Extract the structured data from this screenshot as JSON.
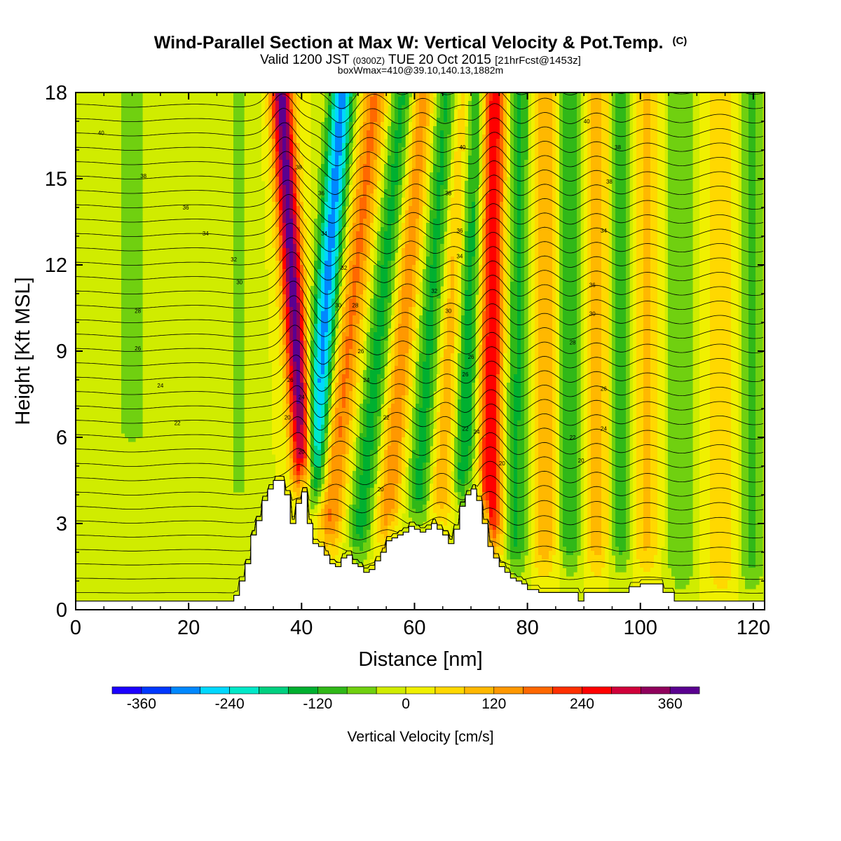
{
  "header": {
    "title": "Wind-Parallel Section at Max W: Vertical Velocity & Pot.Temp.",
    "title_mark": "(C)",
    "valid_prefix": "Valid 1200 JST",
    "valid_zulu": "(0300Z)",
    "valid_date": "TUE 20 Oct 2015",
    "valid_fcst": "[21hrFcst@1453z]",
    "box_info": "boxWmax=410@39.10,140.13,1882m"
  },
  "chart_data": {
    "type": "heatmap",
    "xlabel": "Distance [nm]",
    "ylabel": "Height [Kft MSL]",
    "xlim": [
      0,
      122
    ],
    "ylim": [
      0,
      18
    ],
    "xticks": [
      0,
      20,
      40,
      60,
      80,
      100,
      120
    ],
    "yticks": [
      0,
      3,
      6,
      9,
      12,
      15,
      18
    ],
    "grid": false,
    "colorbar": {
      "label": "Vertical Velocity [cm/s]",
      "placement": "bottom",
      "tick_values": [
        -360,
        -240,
        -120,
        0,
        120,
        240,
        360
      ],
      "level_edges": [
        -400,
        -360,
        -320,
        -280,
        -240,
        -200,
        -160,
        -120,
        -80,
        -40,
        0,
        40,
        80,
        120,
        160,
        200,
        240,
        280,
        320,
        360,
        400,
        440
      ],
      "colors": [
        "#1c00ff",
        "#0038ff",
        "#0088ff",
        "#00d8ff",
        "#00e8c8",
        "#00d080",
        "#00b030",
        "#30b818",
        "#70d010",
        "#d0ec00",
        "#f0f000",
        "#ffd800",
        "#ffb800",
        "#ff9800",
        "#ff6800",
        "#ff3000",
        "#ff0000",
        "#d0003a",
        "#90005c",
        "#5a0090"
      ]
    },
    "terrain_kft": {
      "x": [
        0,
        26,
        28,
        29,
        30,
        31,
        32,
        33,
        34,
        35,
        36,
        37,
        38,
        39,
        40,
        41,
        42,
        43,
        44,
        45,
        46,
        47,
        48,
        49,
        50,
        51,
        52,
        53,
        54,
        55,
        56,
        57,
        58,
        59,
        60,
        61,
        62,
        63,
        64,
        65,
        66,
        67,
        68,
        69,
        70,
        71,
        72,
        73,
        74,
        75,
        76,
        77,
        78,
        79,
        80,
        82,
        84,
        86,
        88,
        89,
        90,
        92,
        94,
        96,
        98,
        100,
        102,
        104,
        106,
        108,
        110,
        112,
        114,
        116,
        118,
        120,
        122
      ],
      "y": [
        0.3,
        0.3,
        0.5,
        1.0,
        1.6,
        2.6,
        3.1,
        3.8,
        4.2,
        4.5,
        4.5,
        4.0,
        3.0,
        3.7,
        4.1,
        3.0,
        2.3,
        2.2,
        1.9,
        1.6,
        1.5,
        1.8,
        1.9,
        1.6,
        1.5,
        1.3,
        1.4,
        1.7,
        2.0,
        2.4,
        2.5,
        2.6,
        2.7,
        2.9,
        2.8,
        2.7,
        2.8,
        3.0,
        2.8,
        2.6,
        2.3,
        2.8,
        3.6,
        4.0,
        4.2,
        3.8,
        3.0,
        2.2,
        1.8,
        1.5,
        1.3,
        1.1,
        1.0,
        0.9,
        0.7,
        0.6,
        0.6,
        0.6,
        0.6,
        0.3,
        0.6,
        0.6,
        0.6,
        0.6,
        0.8,
        0.9,
        0.9,
        0.6,
        0.3,
        0.3,
        0.3,
        0.3,
        0.3,
        0.3,
        0.3,
        0.3,
        0.3
      ]
    },
    "w_features": [
      {
        "x": 40.0,
        "slope": -0.3,
        "width": 1.4,
        "amp": 380,
        "zmin": 3.5
      },
      {
        "x": 42.6,
        "slope": 0.38,
        "width": 1.5,
        "amp": -300,
        "zmin": 3.2
      },
      {
        "x": 46.5,
        "slope": 0.55,
        "width": 1.7,
        "amp": 170,
        "zmin": 1.5
      },
      {
        "x": 52.0,
        "slope": 0.5,
        "width": 1.6,
        "amp": -140,
        "zmin": 1.5
      },
      {
        "x": 56.5,
        "slope": 0.42,
        "width": 1.6,
        "amp": 150,
        "zmin": 2.0
      },
      {
        "x": 61.5,
        "slope": 0.35,
        "width": 1.6,
        "amp": -140,
        "zmin": 2.5
      },
      {
        "x": 65.2,
        "slope": 0.3,
        "width": 1.5,
        "amp": 120,
        "zmin": 2.5
      },
      {
        "x": 69.0,
        "slope": 0.15,
        "width": 1.4,
        "amp": -170,
        "zmin": 3.5
      },
      {
        "x": 73.5,
        "slope": 0.05,
        "width": 1.6,
        "amp": 280,
        "zmin": 1.5
      },
      {
        "x": 78.0,
        "slope": 0.05,
        "width": 1.6,
        "amp": -130,
        "zmin": 1.0
      },
      {
        "x": 83.0,
        "slope": 0.0,
        "width": 1.6,
        "amp": 120,
        "zmin": 1.0
      },
      {
        "x": 87.5,
        "slope": 0.0,
        "width": 1.5,
        "amp": -110,
        "zmin": 1.0
      },
      {
        "x": 92.5,
        "slope": 0.0,
        "width": 1.7,
        "amp": 110,
        "zmin": 1.0
      },
      {
        "x": 96.5,
        "slope": 0.0,
        "width": 1.6,
        "amp": -110,
        "zmin": 1.0
      },
      {
        "x": 101.0,
        "slope": 0.0,
        "width": 2.0,
        "amp": 90,
        "zmin": 1.0
      },
      {
        "x": 107.0,
        "slope": 0.0,
        "width": 2.2,
        "amp": -80,
        "zmin": 0.3
      },
      {
        "x": 114.5,
        "slope": 0.0,
        "width": 2.2,
        "amp": 80,
        "zmin": 0.3
      },
      {
        "x": 119.5,
        "slope": 0.0,
        "width": 1.8,
        "amp": -90,
        "zmin": 0.3
      },
      {
        "x": 10.0,
        "slope": 0.0,
        "width": 3.0,
        "amp": -50,
        "zmin": 5.0
      },
      {
        "x": 29.0,
        "slope": 0.0,
        "width": 2.0,
        "amp": -45,
        "zmin": 3.0
      }
    ],
    "theta_contour_labels": [
      {
        "text": "40",
        "x": 4.5,
        "y": 16.6
      },
      {
        "text": "38",
        "x": 12,
        "y": 15.1
      },
      {
        "text": "36",
        "x": 19.5,
        "y": 14.0
      },
      {
        "text": "34",
        "x": 23,
        "y": 13.1
      },
      {
        "text": "32",
        "x": 28,
        "y": 12.2
      },
      {
        "text": "30",
        "x": 29,
        "y": 11.4
      },
      {
        "text": "28",
        "x": 11,
        "y": 10.4
      },
      {
        "text": "26",
        "x": 11,
        "y": 9.1
      },
      {
        "text": "24",
        "x": 15,
        "y": 7.8
      },
      {
        "text": "22",
        "x": 18,
        "y": 6.5
      },
      {
        "text": "38",
        "x": 39.5,
        "y": 15.4
      },
      {
        "text": "36",
        "x": 43.5,
        "y": 14.5
      },
      {
        "text": "34",
        "x": 44,
        "y": 13.1
      },
      {
        "text": "32",
        "x": 47.5,
        "y": 11.9
      },
      {
        "text": "30",
        "x": 46.5,
        "y": 10.6
      },
      {
        "text": "28",
        "x": 49.5,
        "y": 10.6
      },
      {
        "text": "26",
        "x": 38,
        "y": 8.0
      },
      {
        "text": "24",
        "x": 40.0,
        "y": 7.4
      },
      {
        "text": "26",
        "x": 50.5,
        "y": 9.0
      },
      {
        "text": "24",
        "x": 51.5,
        "y": 8.0
      },
      {
        "text": "22",
        "x": 55,
        "y": 6.7
      },
      {
        "text": "20",
        "x": 37.5,
        "y": 6.7
      },
      {
        "text": "20",
        "x": 40.0,
        "y": 5.5
      },
      {
        "text": "20",
        "x": 54,
        "y": 4.2
      },
      {
        "text": "40",
        "x": 68.5,
        "y": 16.1
      },
      {
        "text": "38",
        "x": 66,
        "y": 14.5
      },
      {
        "text": "36",
        "x": 68,
        "y": 13.2
      },
      {
        "text": "34",
        "x": 68,
        "y": 12.3
      },
      {
        "text": "32",
        "x": 63.5,
        "y": 11.1
      },
      {
        "text": "30",
        "x": 66,
        "y": 10.4
      },
      {
        "text": "26",
        "x": 70,
        "y": 8.8
      },
      {
        "text": "26",
        "x": 69,
        "y": 8.2
      },
      {
        "text": "22",
        "x": 69,
        "y": 6.3
      },
      {
        "text": "24",
        "x": 71,
        "y": 6.2
      },
      {
        "text": "20",
        "x": 75.5,
        "y": 5.1
      },
      {
        "text": "40",
        "x": 90.5,
        "y": 17.0
      },
      {
        "text": "38",
        "x": 96,
        "y": 16.1
      },
      {
        "text": "38",
        "x": 94.5,
        "y": 14.9
      },
      {
        "text": "34",
        "x": 93.5,
        "y": 13.2
      },
      {
        "text": "36",
        "x": 91.5,
        "y": 11.3
      },
      {
        "text": "30",
        "x": 91.5,
        "y": 10.3
      },
      {
        "text": "28",
        "x": 88,
        "y": 9.3
      },
      {
        "text": "26",
        "x": 93.5,
        "y": 7.7
      },
      {
        "text": "24",
        "x": 93.5,
        "y": 6.3
      },
      {
        "text": "22",
        "x": 88,
        "y": 6.0
      },
      {
        "text": "20",
        "x": 89.5,
        "y": 5.2
      }
    ]
  }
}
